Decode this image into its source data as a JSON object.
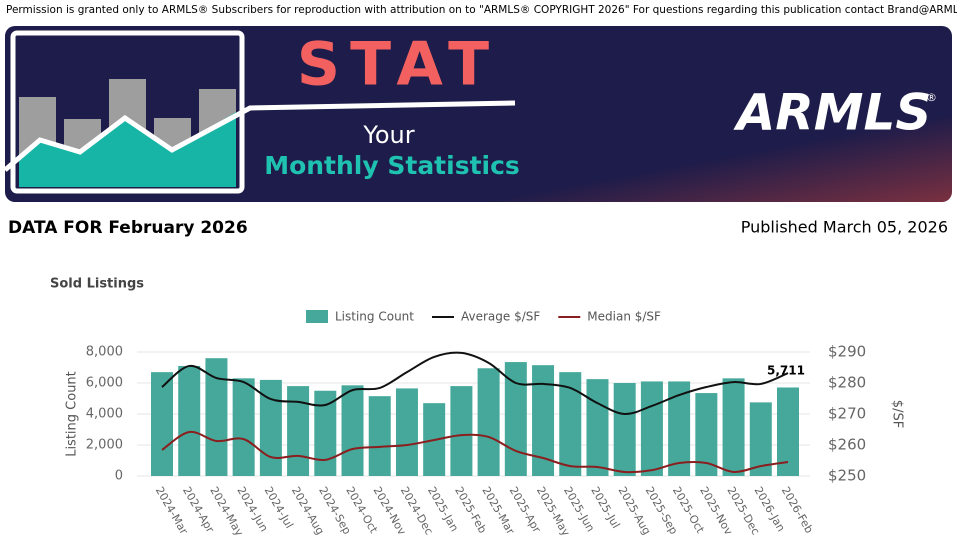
{
  "header": {
    "permission": "Permission is granted only to ARMLS® Subscribers for reproduction with attribution on to \"ARMLS® COPYRIGHT 2026\" For questions regarding this publication contact Brand@ARMLS.com.",
    "banner_title": "STAT",
    "banner_line1": "Your",
    "banner_line2": "Monthly Statistics",
    "logo": "ARMLS",
    "logo_mark": "®",
    "data_for": "DATA FOR February 2026",
    "published": "Published March 05, 2026"
  },
  "chart_data": {
    "type": "bar",
    "title": "Sold Listings",
    "ylabel": "Listing Count",
    "y2label": "$/SF",
    "grid": true,
    "categories": [
      "2024-Mar",
      "2024-Apr",
      "2024-May",
      "2024-Jun",
      "2024-Jul",
      "2024-Aug",
      "2024-Sep",
      "2024-Oct",
      "2024-Nov",
      "2024-Dec",
      "2025-Jan",
      "2025-Feb",
      "2025-Mar",
      "2025-Apr",
      "2025-May",
      "2025-Jun",
      "2025-Jul",
      "2025-Aug",
      "2025-Sep",
      "2025-Oct",
      "2025-Nov",
      "2025-Dec",
      "2026-Jan",
      "2026-Feb"
    ],
    "ylim": [
      0,
      8000
    ],
    "yticks": [
      0,
      {
        "value": 2000,
        "label": "2,000"
      },
      {
        "value": 4000,
        "label": "4,000"
      },
      {
        "value": 6000,
        "label": "6,000"
      },
      {
        "value": 8000,
        "label": "8,000"
      }
    ],
    "y2lim": [
      250,
      290
    ],
    "y2ticks": [
      {
        "value": 250,
        "label": "$250"
      },
      {
        "value": 260,
        "label": "$260"
      },
      {
        "value": 270,
        "label": "$270"
      },
      {
        "value": 280,
        "label": "$280"
      },
      {
        "value": 290,
        "label": "$290"
      }
    ],
    "series": [
      {
        "name": "Listing Count",
        "type": "bar",
        "color": "#45a89a",
        "values": [
          6700,
          7100,
          7600,
          6300,
          6200,
          5800,
          5500,
          5850,
          5150,
          5650,
          4700,
          5800,
          6950,
          7350,
          7150,
          6700,
          6250,
          6000,
          6100,
          6100,
          5350,
          6300,
          4750,
          5711
        ],
        "value_labels": [
          null,
          null,
          null,
          null,
          null,
          null,
          null,
          null,
          null,
          null,
          null,
          null,
          null,
          null,
          null,
          null,
          null,
          null,
          null,
          null,
          null,
          null,
          null,
          "5,711"
        ]
      },
      {
        "name": "Average $/SF",
        "type": "line",
        "axis": "y2",
        "color": "#111111",
        "values": [
          278.7,
          285.5,
          281.6,
          280.3,
          274.8,
          273.9,
          272.9,
          277.7,
          278.4,
          283.5,
          288.4,
          289.7,
          286.5,
          280.0,
          279.7,
          278.4,
          273.5,
          270.0,
          272.6,
          276.1,
          278.7,
          280.3,
          279.7,
          283.2
        ]
      },
      {
        "name": "Median $/SF",
        "type": "line",
        "axis": "y2",
        "color": "#8b1e1e",
        "values": [
          258.4,
          264.2,
          261.3,
          261.9,
          256.1,
          256.5,
          255.2,
          258.7,
          259.4,
          260.0,
          261.6,
          263.2,
          262.6,
          258.1,
          255.8,
          253.2,
          252.9,
          251.3,
          251.9,
          254.2,
          254.2,
          251.3,
          253.2,
          254.5
        ]
      }
    ]
  }
}
